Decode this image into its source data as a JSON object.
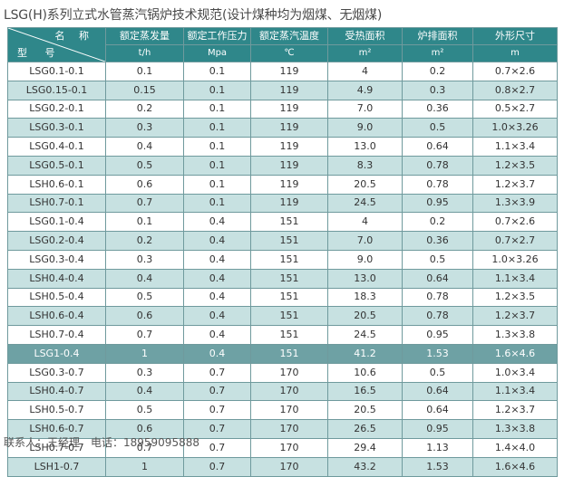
{
  "title": "LSG(H)系列立式水管蒸汽锅炉技术规范(设计煤种均为烟煤、无烟煤)",
  "header": {
    "name_label": "名 称",
    "model_label": "型 号",
    "columns": [
      {
        "name": "额定蒸发量",
        "unit": "t/h"
      },
      {
        "name": "额定工作压力",
        "unit": "Mpa"
      },
      {
        "name": "额定蒸汽温度",
        "unit": "℃"
      },
      {
        "name": "受热面积",
        "unit": "m²"
      },
      {
        "name": "炉排面积",
        "unit": "m²"
      },
      {
        "name": "外形尺寸",
        "unit": "m"
      }
    ]
  },
  "rows": [
    [
      "LSG0.1-0.1",
      "0.1",
      "0.1",
      "119",
      "4",
      "0.2",
      "0.7×2.6"
    ],
    [
      "LSG0.15-0.1",
      "0.15",
      "0.1",
      "119",
      "4.9",
      "0.3",
      "0.8×2.7"
    ],
    [
      "LSG0.2-0.1",
      "0.2",
      "0.1",
      "119",
      "7.0",
      "0.36",
      "0.5×2.7"
    ],
    [
      "LSG0.3-0.1",
      "0.3",
      "0.1",
      "119",
      "9.0",
      "0.5",
      "1.0×3.26"
    ],
    [
      "LSG0.4-0.1",
      "0.4",
      "0.1",
      "119",
      "13.0",
      "0.64",
      "1.1×3.4"
    ],
    [
      "LSG0.5-0.1",
      "0.5",
      "0.1",
      "119",
      "8.3",
      "0.78",
      "1.2×3.5"
    ],
    [
      "LSH0.6-0.1",
      "0.6",
      "0.1",
      "119",
      "20.5",
      "0.78",
      "1.2×3.7"
    ],
    [
      "LSH0.7-0.1",
      "0.7",
      "0.1",
      "119",
      "24.5",
      "0.95",
      "1.3×3.9"
    ],
    [
      "LSG0.1-0.4",
      "0.1",
      "0.4",
      "151",
      "4",
      "0.2",
      "0.7×2.6"
    ],
    [
      "LSG0.2-0.4",
      "0.2",
      "0.4",
      "151",
      "7.0",
      "0.36",
      "0.7×2.7"
    ],
    [
      "LSG0.3-0.4",
      "0.3",
      "0.4",
      "151",
      "9.0",
      "0.5",
      "1.0×3.26"
    ],
    [
      "LSH0.4-0.4",
      "0.4",
      "0.4",
      "151",
      "13.0",
      "0.64",
      "1.1×3.4"
    ],
    [
      "LSH0.5-0.4",
      "0.5",
      "0.4",
      "151",
      "18.3",
      "0.78",
      "1.2×3.5"
    ],
    [
      "LSH0.6-0.4",
      "0.6",
      "0.4",
      "151",
      "20.5",
      "0.78",
      "1.2×3.7"
    ],
    [
      "LSH0.7-0.4",
      "0.7",
      "0.4",
      "151",
      "24.5",
      "0.95",
      "1.3×3.8"
    ],
    [
      "LSG1-0.4",
      "1",
      "0.4",
      "151",
      "41.2",
      "1.53",
      "1.6×4.6"
    ],
    [
      "LSG0.3-0.7",
      "0.3",
      "0.7",
      "170",
      "10.6",
      "0.5",
      "1.0×3.4"
    ],
    [
      "LSH0.4-0.7",
      "0.4",
      "0.7",
      "170",
      "16.5",
      "0.64",
      "1.1×3.4"
    ],
    [
      "LSH0.5-0.7",
      "0.5",
      "0.7",
      "170",
      "20.5",
      "0.64",
      "1.2×3.7"
    ],
    [
      "LSH0.6-0.7",
      "0.6",
      "0.7",
      "170",
      "26.5",
      "0.95",
      "1.3×3.8"
    ],
    [
      "LSH0.7-0.7",
      "0.7",
      "0.7",
      "170",
      "29.4",
      "1.13",
      "1.4×4.0"
    ],
    [
      "LSH1-0.7",
      "1",
      "0.7",
      "170",
      "43.2",
      "1.53",
      "1.6×4.6"
    ]
  ],
  "row_styles": [
    "odd",
    "even",
    "odd",
    "even",
    "odd",
    "even",
    "odd",
    "even",
    "odd",
    "even",
    "odd",
    "even",
    "odd",
    "even",
    "odd",
    "dark",
    "odd",
    "even",
    "odd",
    "even",
    "odd",
    "even"
  ],
  "footer": {
    "contact": "联系人：王经理　电话：18959095888"
  },
  "colors": {
    "header_bg": "#2f878a",
    "band_bg": "#c7e1e1",
    "highlight_bg": "#6ea1a4",
    "border": "#6f9a9d"
  }
}
